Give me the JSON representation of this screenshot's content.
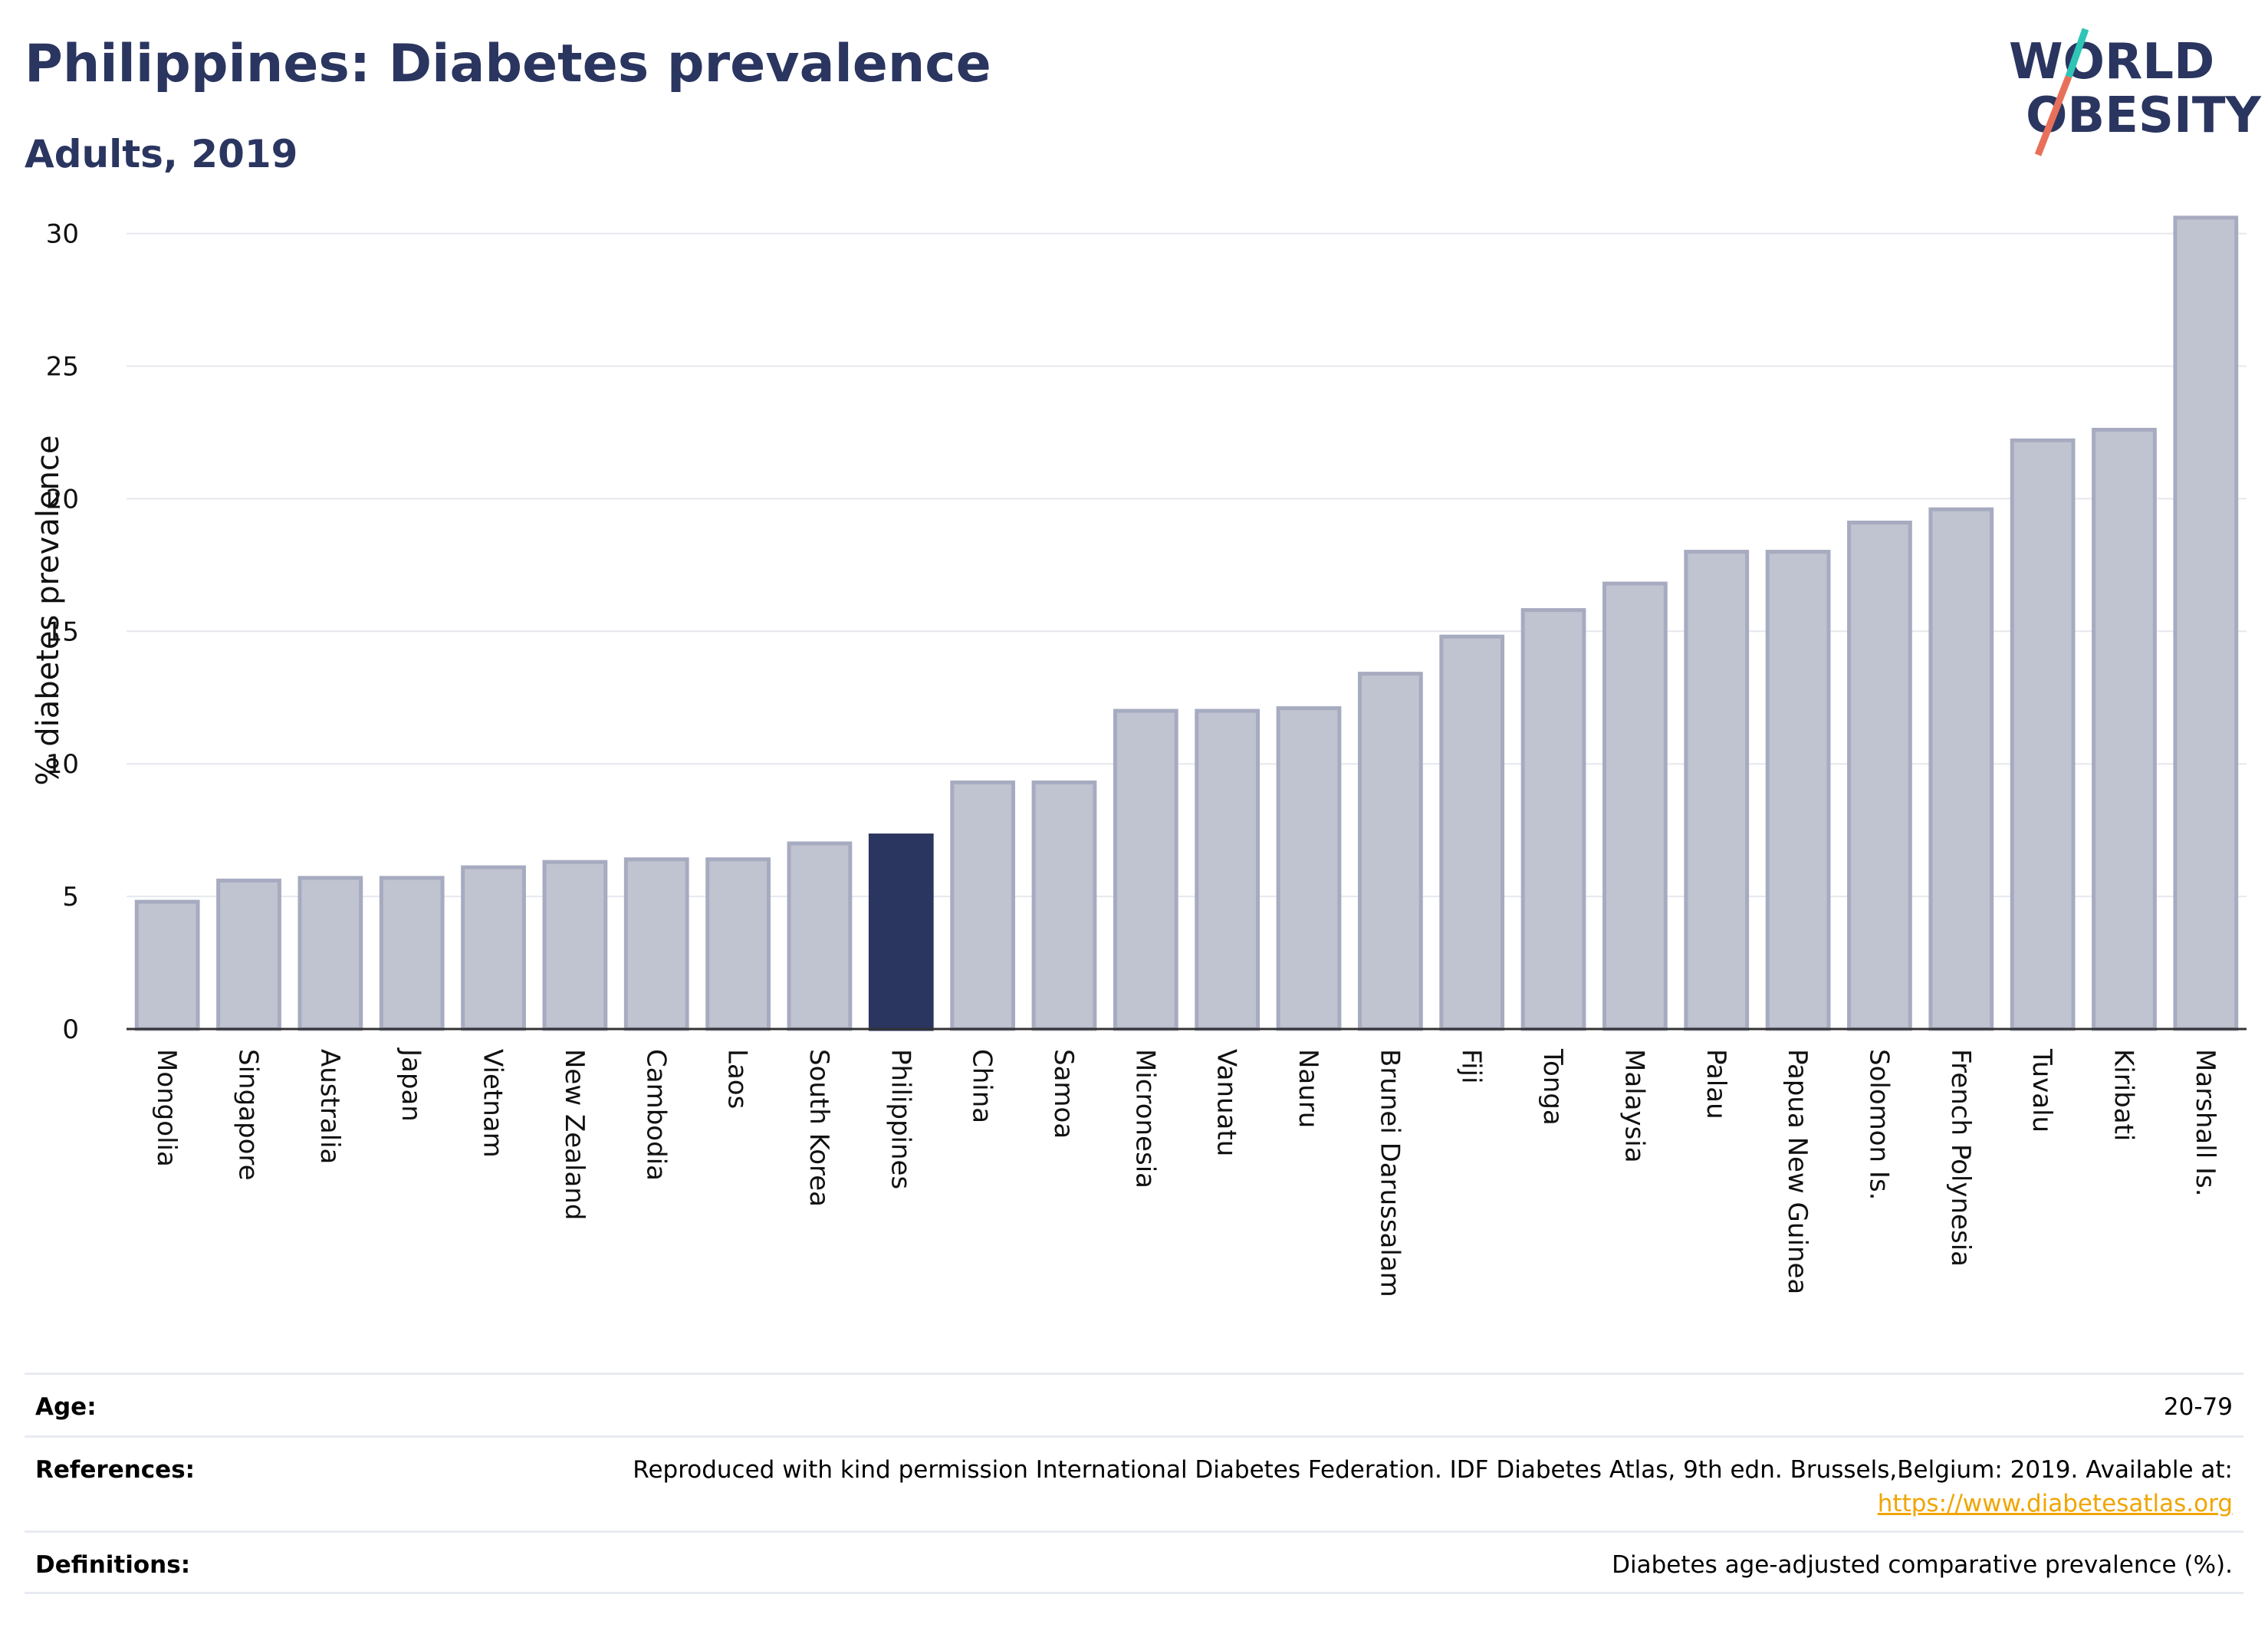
{
  "header": {
    "title": "Philippines: Diabetes prevalence",
    "subtitle": "Adults, 2019"
  },
  "logo": {
    "line1": "WORLD",
    "line2": "OBESITY",
    "colors": {
      "text": "#2a3560",
      "slash_top": "#2ec4b6",
      "slash_bottom": "#e8705a"
    }
  },
  "chart_data": {
    "type": "bar",
    "ylabel": "% diabetes prevalence",
    "xlabel": "",
    "ylim": [
      0,
      31
    ],
    "yticks": [
      0,
      5,
      10,
      15,
      20,
      25,
      30
    ],
    "grid": true,
    "highlight": "Philippines",
    "colors": {
      "bar": "#c0c3d0",
      "bar_stroke": "#a7abc0",
      "highlight": "#2a3560"
    },
    "categories": [
      "Mongolia",
      "Singapore",
      "Australia",
      "Japan",
      "Vietnam",
      "New Zealand",
      "Cambodia",
      "Laos",
      "South Korea",
      "Philippines",
      "China",
      "Samoa",
      "Micronesia",
      "Vanuatu",
      "Nauru",
      "Brunei Darussalam",
      "Fiji",
      "Tonga",
      "Malaysia",
      "Palau",
      "Papua New Guinea",
      "Solomon Is.",
      "French Polynesia",
      "Tuvalu",
      "Kiribati",
      "Marshall Is."
    ],
    "values": [
      4.8,
      5.6,
      5.7,
      5.7,
      6.1,
      6.3,
      6.4,
      6.4,
      7.0,
      7.3,
      9.3,
      9.3,
      12.0,
      12.0,
      12.1,
      13.4,
      14.8,
      15.8,
      16.8,
      18.0,
      18.0,
      19.1,
      19.6,
      22.2,
      22.6,
      30.6
    ]
  },
  "meta": {
    "age_label": "Age:",
    "age_value": "20-79",
    "references_label": "References:",
    "references_text": "Reproduced with kind permission International Diabetes Federation. IDF Diabetes Atlas, 9th edn. Brussels,Belgium: 2019. Available at:",
    "references_link": "https://www.diabetesatlas.org",
    "definitions_label": "Definitions:",
    "definitions_value": "Diabetes age-adjusted comparative prevalence (%)."
  }
}
